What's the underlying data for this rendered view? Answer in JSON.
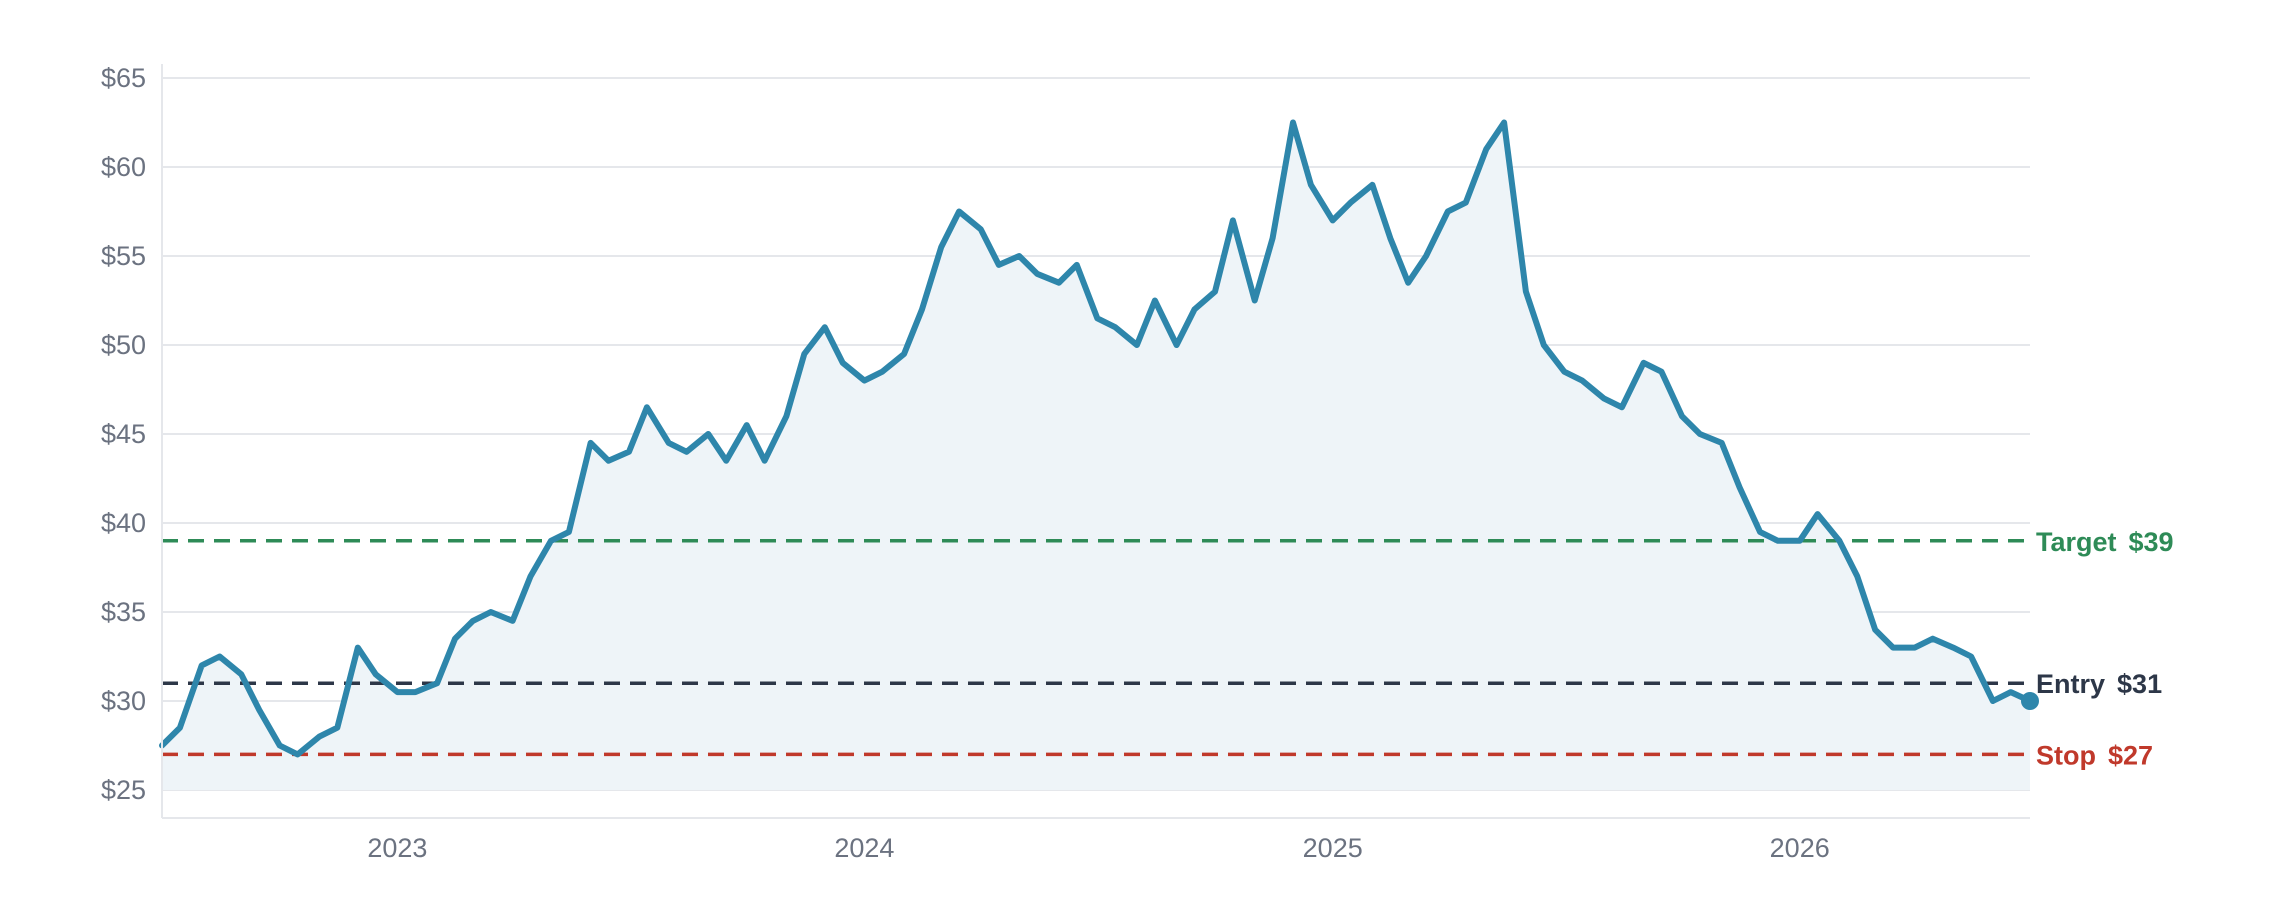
{
  "chart_data": {
    "type": "line",
    "title": "",
    "xlabel": "",
    "ylabel": "",
    "x_range": [
      "2022-07-01",
      "2026-06-30"
    ],
    "ylim": [
      25,
      65
    ],
    "grid": "horizontal",
    "x_ticks": [
      {
        "date": "2023-01-01",
        "label": "2023"
      },
      {
        "date": "2024-01-01",
        "label": "2024"
      },
      {
        "date": "2025-01-01",
        "label": "2025"
      },
      {
        "date": "2026-01-01",
        "label": "2026"
      }
    ],
    "y_ticks": [
      {
        "value": 25,
        "label": "$25"
      },
      {
        "value": 30,
        "label": "$30"
      },
      {
        "value": 35,
        "label": "$35"
      },
      {
        "value": 40,
        "label": "$40"
      },
      {
        "value": 45,
        "label": "$45"
      },
      {
        "value": 50,
        "label": "$50"
      },
      {
        "value": 55,
        "label": "$55"
      },
      {
        "value": 60,
        "label": "$60"
      },
      {
        "value": 65,
        "label": "$65"
      }
    ],
    "series": [
      {
        "line_color": "#2e86ab",
        "fill_color": "#eef4f8",
        "x": [
          "2022-07-01",
          "2022-07-15",
          "2022-08-01",
          "2022-08-15",
          "2022-09-01",
          "2022-09-15",
          "2022-10-01",
          "2022-10-15",
          "2022-11-01",
          "2022-11-15",
          "2022-12-01",
          "2022-12-15",
          "2023-01-01",
          "2023-01-15",
          "2023-02-01",
          "2023-02-15",
          "2023-03-01",
          "2023-03-15",
          "2023-04-01",
          "2023-04-15",
          "2023-05-01",
          "2023-05-15",
          "2023-06-01",
          "2023-06-15",
          "2023-07-01",
          "2023-07-15",
          "2023-08-01",
          "2023-08-15",
          "2023-09-01",
          "2023-09-15",
          "2023-10-01",
          "2023-10-15",
          "2023-11-01",
          "2023-11-15",
          "2023-12-01",
          "2023-12-15",
          "2024-01-01",
          "2024-01-15",
          "2024-02-01",
          "2024-02-15",
          "2024-03-01",
          "2024-03-15",
          "2024-04-01",
          "2024-04-15",
          "2024-05-01",
          "2024-05-15",
          "2024-06-01",
          "2024-06-15",
          "2024-07-01",
          "2024-07-15",
          "2024-08-01",
          "2024-08-15",
          "2024-09-01",
          "2024-09-15",
          "2024-10-01",
          "2024-10-15",
          "2024-11-01",
          "2024-11-15",
          "2024-12-01",
          "2024-12-15",
          "2025-01-01",
          "2025-01-15",
          "2025-02-01",
          "2025-02-15",
          "2025-03-01",
          "2025-03-15",
          "2025-04-01",
          "2025-04-15",
          "2025-05-01",
          "2025-05-15",
          "2025-06-01",
          "2025-06-15",
          "2025-07-01",
          "2025-07-15",
          "2025-08-01",
          "2025-08-15",
          "2025-09-01",
          "2025-09-15",
          "2025-10-01",
          "2025-10-15",
          "2025-11-01",
          "2025-11-15",
          "2025-12-01",
          "2025-12-15",
          "2026-01-01",
          "2026-01-15",
          "2026-02-01",
          "2026-02-15",
          "2026-03-01",
          "2026-03-15",
          "2026-04-01",
          "2026-04-15",
          "2026-05-01",
          "2026-05-15",
          "2026-06-01",
          "2026-06-15",
          "2026-06-30"
        ],
        "values": [
          27.5,
          28.5,
          32.0,
          32.5,
          31.5,
          29.5,
          27.5,
          27.0,
          28.0,
          28.5,
          33.0,
          31.5,
          30.5,
          30.5,
          31.0,
          33.5,
          34.5,
          35.0,
          34.5,
          37.0,
          39.0,
          39.5,
          44.5,
          43.5,
          44.0,
          46.5,
          44.5,
          44.0,
          45.0,
          43.5,
          45.5,
          43.5,
          46.0,
          49.5,
          51.0,
          49.0,
          48.0,
          48.5,
          49.5,
          52.0,
          55.5,
          57.5,
          56.5,
          54.5,
          55.0,
          54.0,
          53.5,
          54.5,
          51.5,
          51.0,
          50.0,
          52.5,
          50.0,
          52.0,
          53.0,
          57.0,
          52.5,
          56.0,
          62.5,
          59.0,
          57.0,
          58.0,
          59.0,
          56.0,
          53.5,
          55.0,
          57.5,
          58.0,
          61.0,
          62.5,
          53.0,
          50.0,
          48.5,
          48.0,
          47.0,
          46.5,
          49.0,
          48.5,
          46.0,
          45.0,
          44.5,
          42.0,
          39.5,
          39.0,
          39.0,
          40.5,
          39.0,
          37.0,
          34.0,
          33.0,
          33.0,
          33.5,
          33.0,
          32.5,
          30.0,
          30.5,
          30.0
        ]
      }
    ],
    "reference_lines": [
      {
        "label": "Target",
        "value_label": "$39",
        "value": 39,
        "color": "#2e8b57"
      },
      {
        "label": "Entry",
        "value_label": "$31",
        "value": 31,
        "color": "#2d3748"
      },
      {
        "label": "Stop",
        "value_label": "$27",
        "value": 27,
        "color": "#c0392b"
      }
    ]
  }
}
